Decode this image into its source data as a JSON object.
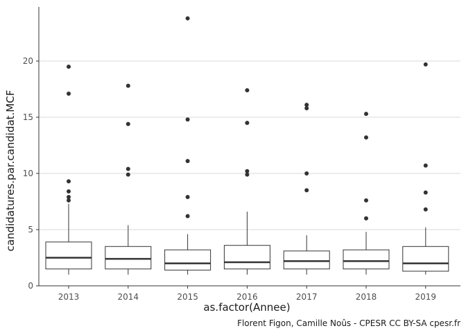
{
  "chart_data": {
    "type": "boxplot",
    "xlabel": "as.factor(Annee)",
    "ylabel": "candidatures.par.candidat.MCF",
    "ylim": [
      0,
      25
    ],
    "yticks": [
      0,
      5,
      10,
      15,
      20
    ],
    "grid": "horizontal major",
    "categories": [
      "2013",
      "2014",
      "2015",
      "2016",
      "2017",
      "2018",
      "2019"
    ],
    "boxes": [
      {
        "year": "2013",
        "min": 1.0,
        "q1": 1.5,
        "median": 2.5,
        "q3": 3.9,
        "max": 7.3,
        "outliers": [
          7.6,
          7.9,
          8.4,
          9.3,
          17.1,
          19.5
        ]
      },
      {
        "year": "2014",
        "min": 1.0,
        "q1": 1.5,
        "median": 2.4,
        "q3": 3.5,
        "max": 5.4,
        "outliers": [
          9.9,
          10.4,
          14.4,
          17.8
        ]
      },
      {
        "year": "2015",
        "min": 1.0,
        "q1": 1.4,
        "median": 2.0,
        "q3": 3.2,
        "max": 4.6,
        "outliers": [
          6.2,
          7.9,
          11.1,
          14.8,
          23.8
        ]
      },
      {
        "year": "2016",
        "min": 1.0,
        "q1": 1.5,
        "median": 2.1,
        "q3": 3.6,
        "max": 6.6,
        "outliers": [
          9.9,
          10.2,
          14.5,
          17.4
        ]
      },
      {
        "year": "2017",
        "min": 1.0,
        "q1": 1.5,
        "median": 2.2,
        "q3": 3.1,
        "max": 4.5,
        "outliers": [
          8.5,
          10.0,
          15.8,
          16.1
        ]
      },
      {
        "year": "2018",
        "min": 1.0,
        "q1": 1.5,
        "median": 2.2,
        "q3": 3.2,
        "max": 4.8,
        "outliers": [
          6.0,
          7.6,
          13.2,
          15.3
        ]
      },
      {
        "year": "2019",
        "min": 1.0,
        "q1": 1.3,
        "median": 2.0,
        "q3": 3.5,
        "max": 5.2,
        "outliers": [
          6.8,
          8.3,
          10.7,
          19.7
        ]
      }
    ],
    "caption": "Florent Figon, Camille Noûs - CPESR CC BY-SA cpesr.fr",
    "colors": {
      "grid": "#d9d9d9",
      "box_stroke": "#333333",
      "box_fill": "#ffffff",
      "outlier": "#333333",
      "axis": "#333333"
    }
  }
}
